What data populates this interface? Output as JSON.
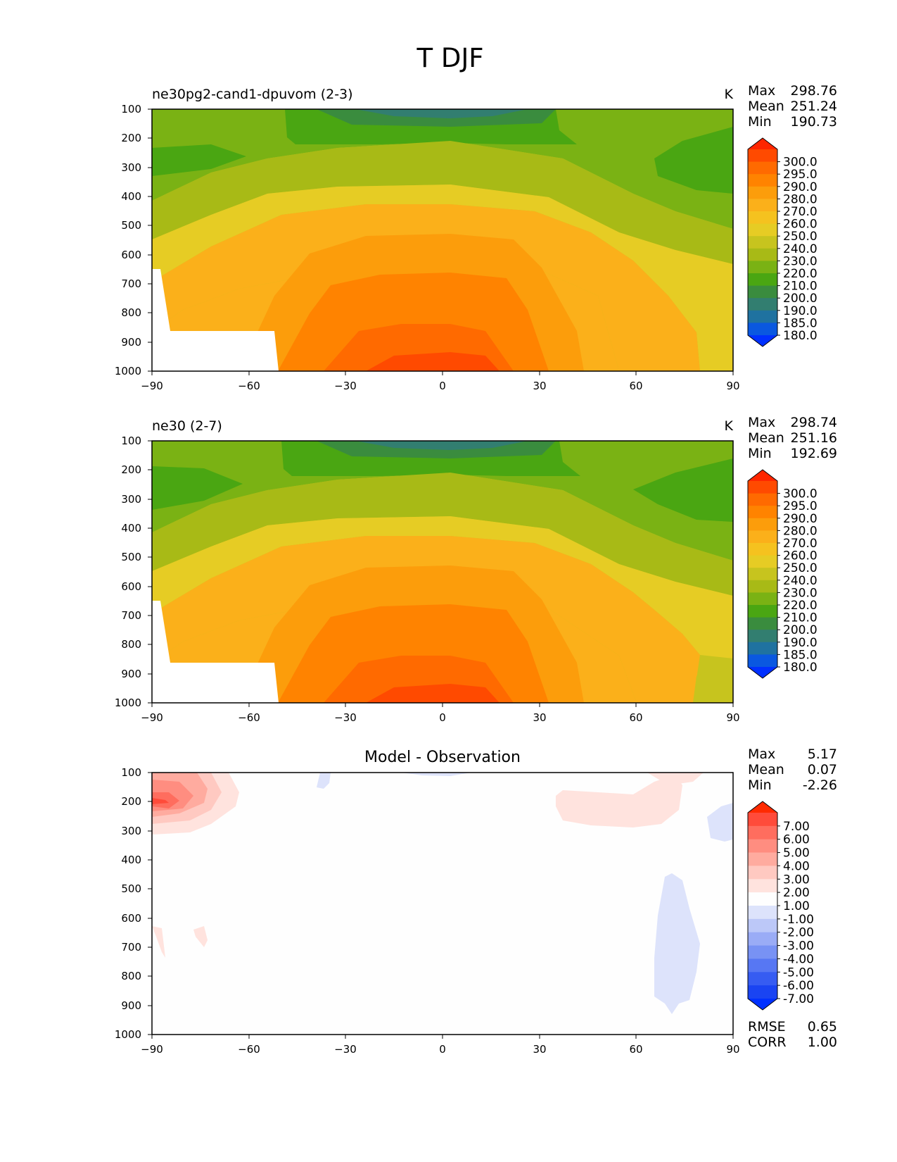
{
  "figure_title": "T DJF",
  "chart_data": [
    {
      "type": "contour",
      "title": "ne30pg2-cand1-dpuvom (2-3)",
      "units": "K",
      "stats": {
        "max_label": "Max",
        "max": "298.76",
        "mean_label": "Mean",
        "mean": "251.24",
        "min_label": "Min",
        "min": "190.73"
      },
      "x_ticks": [
        "−90",
        "−60",
        "−30",
        "0",
        "30",
        "60",
        "90"
      ],
      "y_ticks": [
        "100",
        "200",
        "300",
        "400",
        "500",
        "600",
        "700",
        "800",
        "900",
        "1000"
      ],
      "xlim": [
        -90,
        90
      ],
      "ylim": [
        1000,
        100
      ],
      "colorbar": {
        "levels": [
          "300.0",
          "295.0",
          "290.0",
          "280.0",
          "270.0",
          "260.0",
          "250.0",
          "240.0",
          "230.0",
          "220.0",
          "210.0",
          "200.0",
          "190.0",
          "185.0",
          "180.0"
        ],
        "colors": [
          "#ff2600",
          "#ff4a00",
          "#ff6a00",
          "#ff8300",
          "#fc9d0b",
          "#fbb01a",
          "#f5c21f",
          "#e6cc24",
          "#c7c41e",
          "#a8ba16",
          "#7ab214",
          "#4aa612",
          "#3a8c3e",
          "#327e70",
          "#1f72a0",
          "#0a58e0",
          "#0030ff"
        ]
      }
    },
    {
      "type": "contour",
      "title": "ne30 (2-7)",
      "units": "K",
      "stats": {
        "max_label": "Max",
        "max": "298.74",
        "mean_label": "Mean",
        "mean": "251.16",
        "min_label": "Min",
        "min": "192.69"
      },
      "x_ticks": [
        "−90",
        "−60",
        "−30",
        "0",
        "30",
        "60",
        "90"
      ],
      "y_ticks": [
        "100",
        "200",
        "300",
        "400",
        "500",
        "600",
        "700",
        "800",
        "900",
        "1000"
      ],
      "xlim": [
        -90,
        90
      ],
      "ylim": [
        1000,
        100
      ],
      "colorbar": {
        "levels": [
          "300.0",
          "295.0",
          "290.0",
          "280.0",
          "270.0",
          "260.0",
          "250.0",
          "240.0",
          "230.0",
          "220.0",
          "210.0",
          "200.0",
          "190.0",
          "185.0",
          "180.0"
        ],
        "colors": [
          "#ff2600",
          "#ff4a00",
          "#ff6a00",
          "#ff8300",
          "#fc9d0b",
          "#fbb01a",
          "#f5c21f",
          "#e6cc24",
          "#c7c41e",
          "#a8ba16",
          "#7ab214",
          "#4aa612",
          "#3a8c3e",
          "#327e70",
          "#1f72a0",
          "#0a58e0",
          "#0030ff"
        ]
      }
    },
    {
      "type": "contour",
      "title": "Model - Observation",
      "units": "",
      "stats": {
        "max_label": "Max",
        "max": "5.17",
        "mean_label": "Mean",
        "mean": "0.07",
        "min_label": "Min",
        "min": "-2.26"
      },
      "extra_stats": {
        "rmse_label": "RMSE",
        "rmse": "0.65",
        "corr_label": "CORR",
        "corr": "1.00"
      },
      "x_ticks": [
        "−90",
        "−60",
        "−30",
        "0",
        "30",
        "60",
        "90"
      ],
      "y_ticks": [
        "100",
        "200",
        "300",
        "400",
        "500",
        "600",
        "700",
        "800",
        "900",
        "1000"
      ],
      "xlim": [
        -90,
        90
      ],
      "ylim": [
        1000,
        100
      ],
      "colorbar": {
        "levels": [
          "7.00",
          "6.00",
          "5.00",
          "4.00",
          "3.00",
          "2.00",
          "1.00",
          "-1.00",
          "-2.00",
          "-3.00",
          "-4.00",
          "-5.00",
          "-6.00",
          "-7.00"
        ],
        "colors": [
          "#ff2a00",
          "#ff4b3a",
          "#ff6d5e",
          "#ff8d80",
          "#ffab9f",
          "#ffc9c1",
          "#ffe3de",
          "#fefefe",
          "#dde3fb",
          "#bcc8f8",
          "#9aacf6",
          "#7892f4",
          "#5777f3",
          "#365cf2",
          "#1a44f2",
          "#0030ff"
        ]
      }
    }
  ]
}
